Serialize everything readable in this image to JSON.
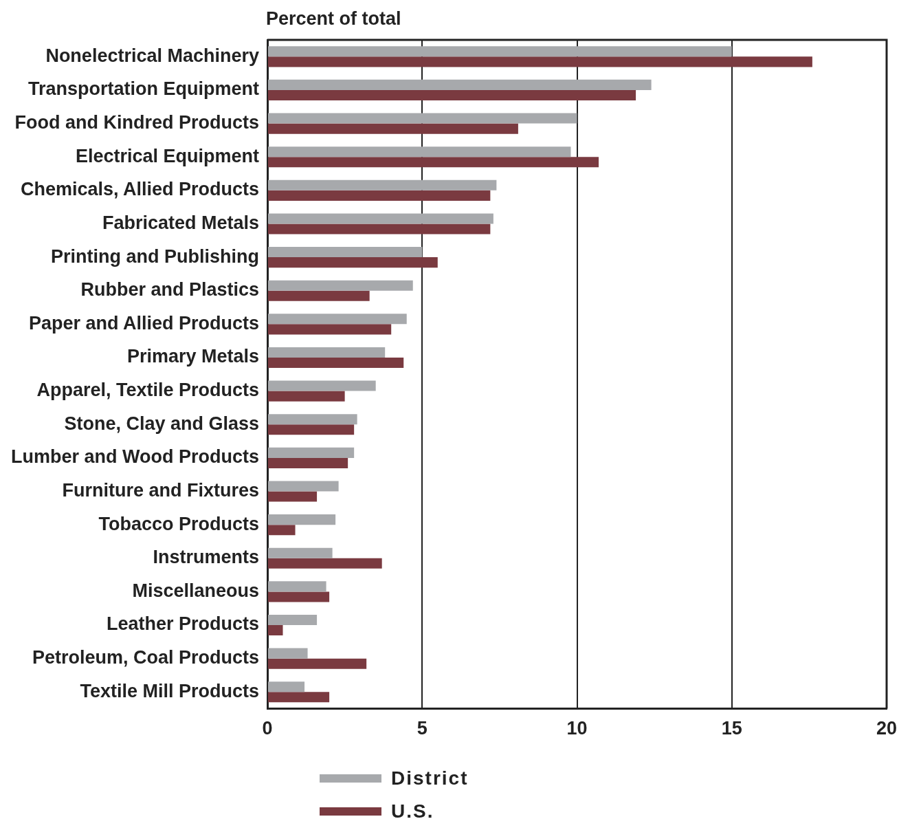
{
  "chart_data": {
    "type": "bar",
    "orientation": "horizontal",
    "title": "Percent of total",
    "categories": [
      "Nonelectrical Machinery",
      "Transportation Equipment",
      "Food and Kindred Products",
      "Electrical Equipment",
      "Chemicals, Allied Products",
      "Fabricated Metals",
      "Printing and Publishing",
      "Rubber and Plastics",
      "Paper and Allied Products",
      "Primary Metals",
      "Apparel, Textile Products",
      "Stone, Clay and Glass",
      "Lumber and Wood Products",
      "Furniture and Fixtures",
      "Tobacco Products",
      "Instruments",
      "Miscellaneous",
      "Leather Products",
      "Petroleum, Coal Products",
      "Textile Mill Products"
    ],
    "series": [
      {
        "name": "District",
        "color": "#a7a9ac",
        "values": [
          15.0,
          12.4,
          10.0,
          9.8,
          7.4,
          7.3,
          5.0,
          4.7,
          4.5,
          3.8,
          3.5,
          2.9,
          2.8,
          2.3,
          2.2,
          2.1,
          1.9,
          1.6,
          1.3,
          1.2
        ]
      },
      {
        "name": "U.S.",
        "color": "#7a3a40",
        "values": [
          17.6,
          11.9,
          8.1,
          10.7,
          7.2,
          7.2,
          5.5,
          3.3,
          4.0,
          4.4,
          2.5,
          2.8,
          2.6,
          1.6,
          0.9,
          3.7,
          2.0,
          0.5,
          3.2,
          2.0
        ]
      }
    ],
    "xlim": [
      0,
      20
    ],
    "xticks": [
      0,
      5,
      10,
      15,
      20
    ],
    "grid": "x",
    "legend": "bottom left"
  }
}
